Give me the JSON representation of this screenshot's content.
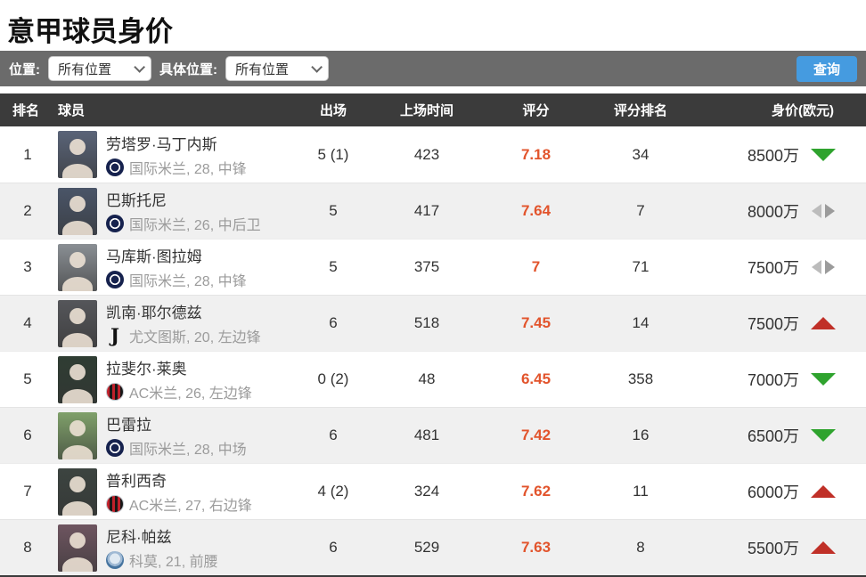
{
  "page": {
    "title": "意甲球员身价"
  },
  "colors": {
    "accent": "#459be0",
    "bar": "#6b6b6b",
    "head": "#3b3b3b",
    "alt": "#f0f0f0",
    "rating": "#e2542c",
    "up": "#c03028",
    "down": "#2fa32e",
    "flat": "#9b9b9b"
  },
  "filters": {
    "position_label": "位置:",
    "position_value": "所有位置",
    "detail_position_label": "具体位置:",
    "detail_position_value": "所有位置",
    "search_button": "查询"
  },
  "table": {
    "headers": {
      "rank": "排名",
      "player": "球员",
      "appearances": "出场",
      "minutes": "上场时间",
      "rating": "评分",
      "rating_rank": "评分排名",
      "value": "身价(欧元)"
    },
    "rows": [
      {
        "rank": "1",
        "name": "劳塔罗·马丁内斯",
        "meta": "国际米兰, 28, 中锋",
        "club": "inter",
        "club_icon": "inter-badge-icon",
        "appearances": "5 (1)",
        "minutes": "423",
        "rating": "7.18",
        "rating_rank": "34",
        "value": "8500万",
        "trend": "down",
        "photo_bg": "#5a6478"
      },
      {
        "rank": "2",
        "name": "巴斯托尼",
        "meta": "国际米兰, 26, 中后卫",
        "club": "inter",
        "club_icon": "inter-badge-icon",
        "appearances": "5",
        "minutes": "417",
        "rating": "7.64",
        "rating_rank": "7",
        "value": "8000万",
        "trend": "flat",
        "photo_bg": "#4a5568"
      },
      {
        "rank": "3",
        "name": "马库斯·图拉姆",
        "meta": "国际米兰, 28, 中锋",
        "club": "inter",
        "club_icon": "inter-badge-icon",
        "appearances": "5",
        "minutes": "375",
        "rating": "7",
        "rating_rank": "71",
        "value": "7500万",
        "trend": "flat",
        "photo_bg": "#8a8f94"
      },
      {
        "rank": "4",
        "name": "凯南·耶尔德兹",
        "meta": "尤文图斯, 20, 左边锋",
        "club": "juve",
        "club_icon": "juventus-badge-icon",
        "appearances": "6",
        "minutes": "518",
        "rating": "7.45",
        "rating_rank": "14",
        "value": "7500万",
        "trend": "up",
        "photo_bg": "#55565a"
      },
      {
        "rank": "5",
        "name": "拉斐尔·莱奥",
        "meta": "AC米兰, 26, 左边锋",
        "club": "milan",
        "club_icon": "ac-milan-badge-icon",
        "appearances": "0 (2)",
        "minutes": "48",
        "rating": "6.45",
        "rating_rank": "358",
        "value": "7000万",
        "trend": "down",
        "photo_bg": "#2f3d33"
      },
      {
        "rank": "6",
        "name": "巴雷拉",
        "meta": "国际米兰, 28, 中场",
        "club": "inter",
        "club_icon": "inter-badge-icon",
        "appearances": "6",
        "minutes": "481",
        "rating": "7.42",
        "rating_rank": "16",
        "value": "6500万",
        "trend": "down",
        "photo_bg": "#7fa06a"
      },
      {
        "rank": "7",
        "name": "普利西奇",
        "meta": "AC米兰, 27, 右边锋",
        "club": "milan",
        "club_icon": "ac-milan-badge-icon",
        "appearances": "4 (2)",
        "minutes": "324",
        "rating": "7.62",
        "rating_rank": "11",
        "value": "6000万",
        "trend": "up",
        "photo_bg": "#3c4440"
      },
      {
        "rank": "8",
        "name": "尼科·帕兹",
        "meta": "科莫, 21, 前腰",
        "club": "como",
        "club_icon": "como-badge-icon",
        "appearances": "6",
        "minutes": "529",
        "rating": "7.63",
        "rating_rank": "8",
        "value": "5500万",
        "trend": "up",
        "photo_bg": "#6e5560"
      }
    ]
  },
  "trend_glyphs": {
    "juve_letter": "J"
  }
}
